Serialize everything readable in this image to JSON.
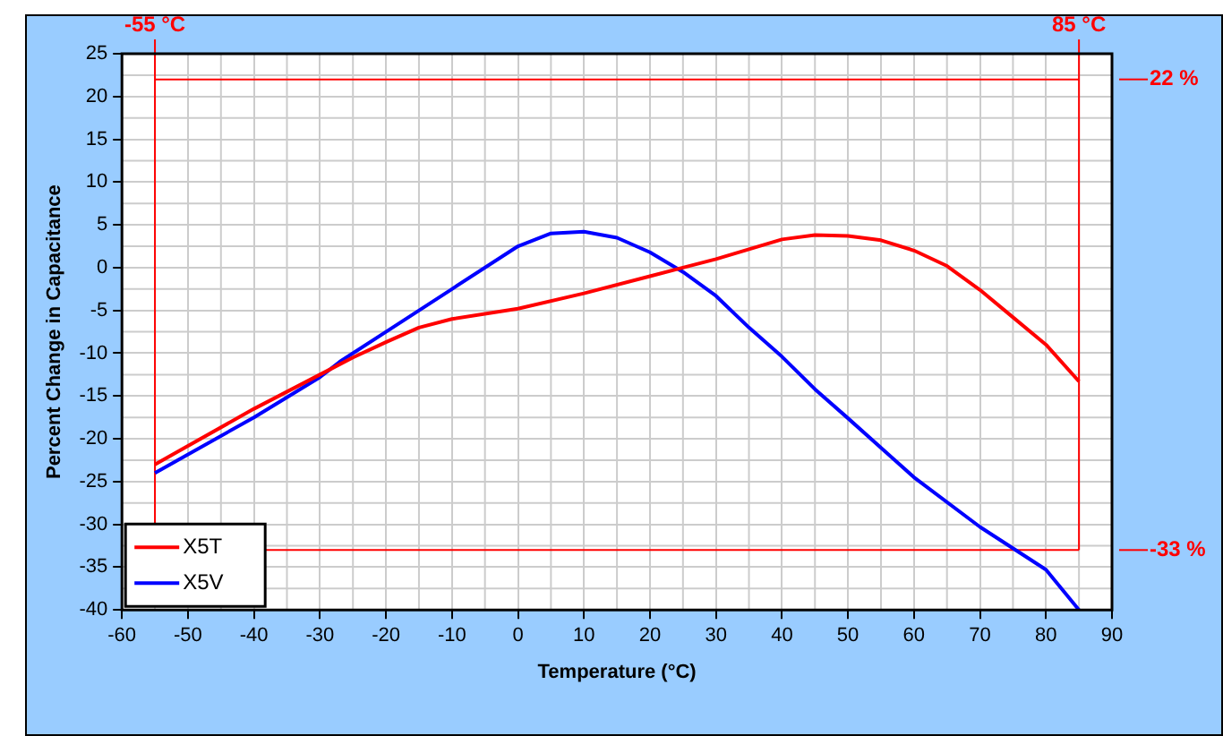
{
  "chart_data": {
    "type": "line",
    "xlabel": "Temperature (°C)",
    "ylabel": "Percent Change in Capacitance",
    "xlim": [
      -60,
      90
    ],
    "xticks": [
      -60,
      -50,
      -40,
      -30,
      -20,
      -10,
      0,
      10,
      20,
      30,
      40,
      50,
      60,
      70,
      80,
      90
    ],
    "ylim": [
      -40,
      25
    ],
    "yticks": [
      -40,
      -35,
      -30,
      -25,
      -20,
      -15,
      -10,
      -5,
      0,
      5,
      10,
      15,
      20,
      25
    ],
    "grid": true,
    "legend": "bottom left",
    "marker": "none",
    "line_style": "solid",
    "series": [
      {
        "name": "X5T",
        "color": "#ff0000",
        "x": [
          -55,
          -40,
          -30,
          -25,
          -20,
          -15,
          -10,
          0,
          10,
          20,
          25,
          30,
          40,
          45,
          50,
          55,
          60,
          65,
          70,
          75,
          80,
          85
        ],
        "values": [
          -23,
          -16.5,
          -12.5,
          -10.5,
          -8.7,
          -7,
          -6,
          -4.8,
          -3,
          -1,
          0,
          1,
          3.3,
          3.8,
          3.7,
          3.2,
          2,
          0.2,
          -2.6,
          -5.8,
          -9,
          -13.3
        ]
      },
      {
        "name": "X5V",
        "color": "#0000ff",
        "x": [
          -55,
          -40,
          -30,
          -27,
          -20,
          -10,
          0,
          5,
          10,
          15,
          20,
          25,
          30,
          35,
          40,
          45,
          50,
          60,
          70,
          80,
          85
        ],
        "values": [
          -24,
          -17.5,
          -12.8,
          -11,
          -7.5,
          -2.5,
          2.5,
          4,
          4.2,
          3.5,
          1.8,
          -0.5,
          -3.3,
          -7,
          -10.4,
          -14.2,
          -17.6,
          -24.5,
          -30.3,
          -35.3,
          -40
        ]
      }
    ],
    "ref_lines": [
      {
        "axis": "x",
        "value": -55,
        "label": "-55 °C",
        "color": "#ff0000"
      },
      {
        "axis": "x",
        "value": 85,
        "label": "85 °C",
        "color": "#ff0000"
      },
      {
        "axis": "y",
        "value": 22,
        "label": "22 %",
        "color": "#ff0000"
      },
      {
        "axis": "y",
        "value": -33,
        "label": "-33 %",
        "color": "#ff0000"
      }
    ]
  }
}
